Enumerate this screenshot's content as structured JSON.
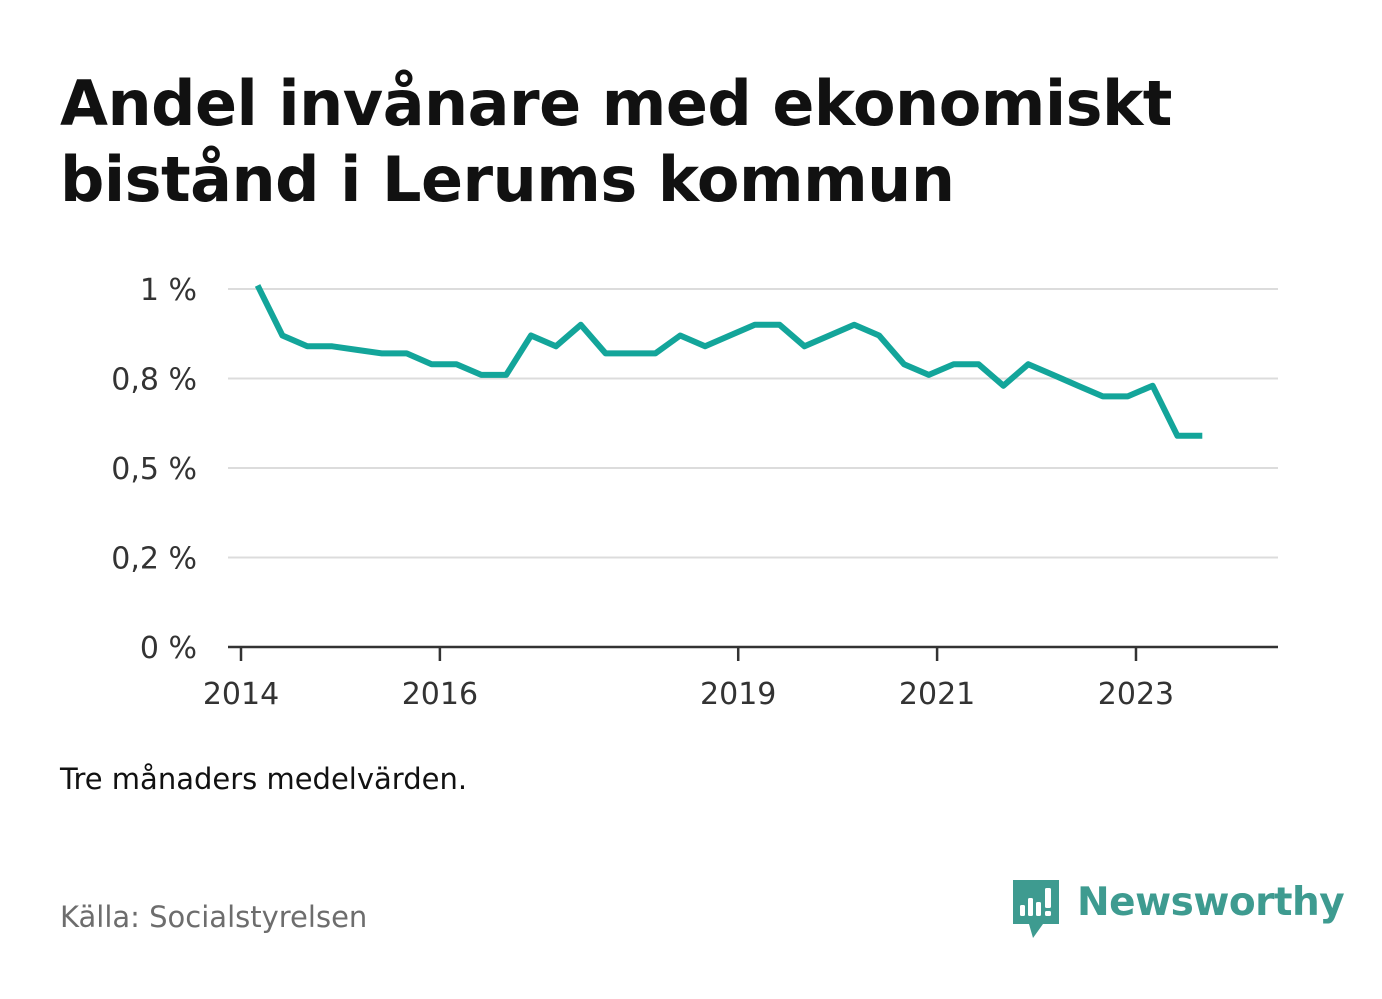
{
  "title": "Andel invånare med ekonomiskt bistånd i Lerums kommun",
  "note": "Tre månaders medelvärden.",
  "source": "Källa: Socialstyrelsen",
  "brand": {
    "name": "Newsworthy",
    "icon": "newsworthy-logo-icon",
    "color": "#3e9b90"
  },
  "chart_data": {
    "type": "line",
    "xlabel": "",
    "ylabel": "",
    "color": "#13a59a",
    "grid": true,
    "legend": "none",
    "xlim": [
      "2014-01",
      "2024-03"
    ],
    "ylim": [
      0,
      1.0
    ],
    "x_ticks": [
      {
        "label": "2014",
        "date": "2014-01"
      },
      {
        "label": "2016",
        "date": "2016-01"
      },
      {
        "label": "2019",
        "date": "2019-01"
      },
      {
        "label": "2021",
        "date": "2021-01"
      },
      {
        "label": "2023",
        "date": "2023-01"
      }
    ],
    "y_ticks": [
      {
        "label": "0 %",
        "value": 0
      },
      {
        "label": "0,2 %",
        "value": 0.25
      },
      {
        "label": "0,5 %",
        "value": 0.5
      },
      {
        "label": "0,8 %",
        "value": 0.75
      },
      {
        "label": "1 %",
        "value": 1.0
      }
    ],
    "series": [
      {
        "x": [
          "2014-03",
          "2014-06",
          "2014-09",
          "2014-12",
          "2015-03",
          "2015-06",
          "2015-09",
          "2015-12",
          "2016-03",
          "2016-06",
          "2016-09",
          "2016-12",
          "2017-03",
          "2017-06",
          "2017-09",
          "2017-12",
          "2018-03",
          "2018-06",
          "2018-09",
          "2018-12",
          "2019-03",
          "2019-06",
          "2019-09",
          "2019-12",
          "2020-03",
          "2020-06",
          "2020-09",
          "2020-12",
          "2021-03",
          "2021-06",
          "2021-09",
          "2021-12",
          "2022-03",
          "2022-06",
          "2022-09",
          "2022-12",
          "2023-03",
          "2023-06",
          "2023-09"
        ],
        "values": [
          1.01,
          0.87,
          0.84,
          0.84,
          0.83,
          0.82,
          0.82,
          0.79,
          0.79,
          0.76,
          0.76,
          0.87,
          0.84,
          0.9,
          0.82,
          0.82,
          0.82,
          0.87,
          0.84,
          0.87,
          0.9,
          0.9,
          0.84,
          0.87,
          0.9,
          0.87,
          0.79,
          0.76,
          0.79,
          0.79,
          0.73,
          0.79,
          0.76,
          0.73,
          0.7,
          0.7,
          0.73,
          0.59,
          0.59
        ]
      }
    ]
  }
}
